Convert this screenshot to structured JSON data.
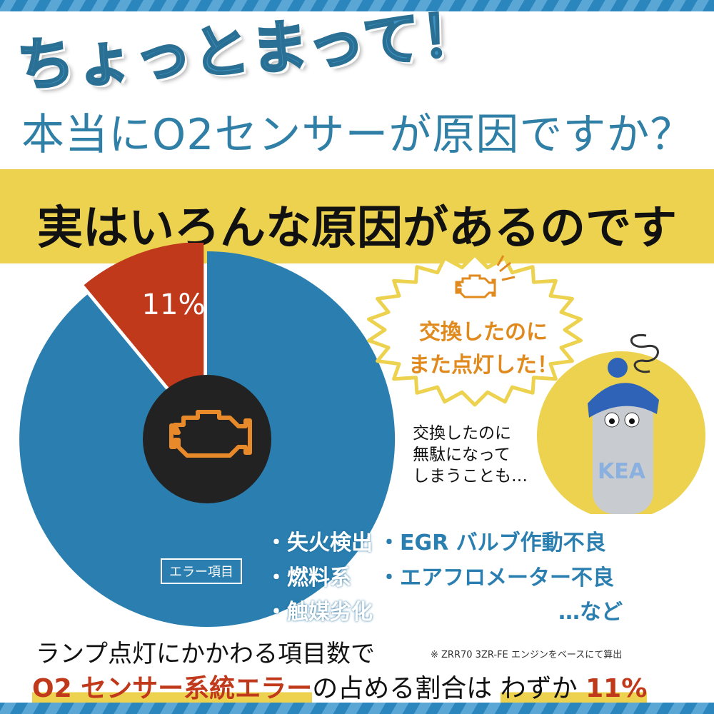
{
  "header": {
    "catch": "ちょっとまって！",
    "question": "本当にO2センサーが原因ですか？"
  },
  "band": {
    "text": "実はいろんな原因があるのです"
  },
  "chart": {
    "type": "pie",
    "highlight_percent": 11,
    "highlight_label": "11%",
    "error_label": "エラー項目",
    "colors": {
      "main": "#2a7fb0",
      "highlight": "#c0391b",
      "center": "#222222",
      "icon": "#e8892a"
    }
  },
  "items": {
    "left": [
      "・失火検出",
      "・燃料系",
      "・触媒劣化"
    ],
    "right": [
      "・EGR バルブ作動不良",
      "・エアフロメーター不良",
      "…など"
    ]
  },
  "bubble": {
    "line1": "交換したのに",
    "line2": "また点灯した！"
  },
  "note": {
    "line1": "交換したのに",
    "line2": "無駄になって",
    "line3": "しまうことも…"
  },
  "bottom": {
    "line1": "ランプ点灯にかかわる項目数で",
    "footnote": "※ ZRR70 3ZR-FE エンジンをベースにて算出",
    "hl1": "O2 センサー系統エラー",
    "mid": "の占める割合は",
    "wazuka": "わずか",
    "hl2": "11%"
  }
}
